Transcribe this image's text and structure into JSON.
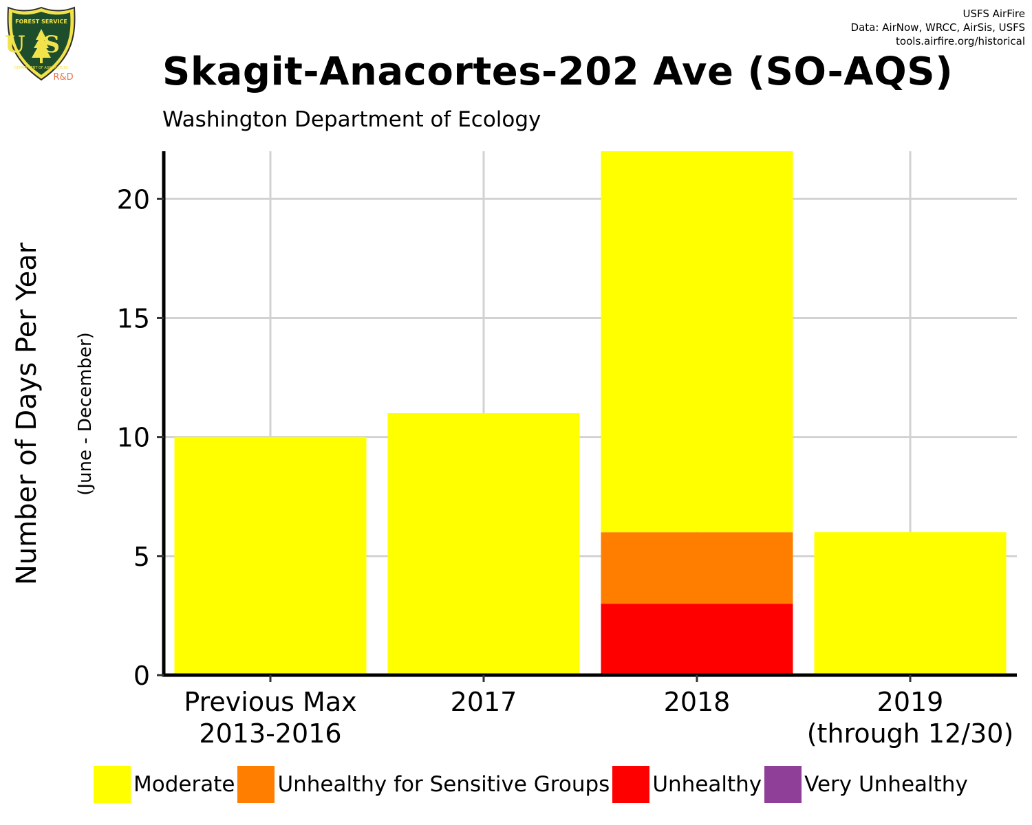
{
  "logo": {
    "top_text": "FOREST SERVICE",
    "bottom_text": "DEPARTMENT OF AGRICULTURE",
    "letters": "US",
    "rd_label": "R&D"
  },
  "credits": {
    "line1": "USFS AirFire",
    "line2": "Data: AirNow, WRCC, AirSis, USFS",
    "line3": "tools.airfire.org/historical"
  },
  "chart_data": {
    "type": "bar",
    "stacked": true,
    "title": "Skagit-Anacortes-202 Ave (SO-AQS)",
    "subtitle": "Washington Department of Ecology",
    "ylabel": "Number of Days Per Year",
    "ylabel_sub": "(June - December)",
    "xlabel": "",
    "ylim": [
      0,
      22
    ],
    "yticks": [
      0,
      5,
      10,
      15,
      20
    ],
    "grid": true,
    "legend_position": "bottom",
    "categories": [
      [
        "Previous Max",
        "2013-2016"
      ],
      [
        "2017"
      ],
      [
        "2018"
      ],
      [
        "2019",
        "(through 12/30)"
      ]
    ],
    "series": [
      {
        "name": "Unhealthy",
        "color": "#ff0000",
        "values": [
          0,
          0,
          3,
          0
        ]
      },
      {
        "name": "Unhealthy for Sensitive Groups",
        "color": "#ff7e00",
        "values": [
          0,
          0,
          3,
          0
        ]
      },
      {
        "name": "Moderate",
        "color": "#ffff00",
        "values": [
          10,
          11,
          16,
          6
        ]
      },
      {
        "name": "Very Unhealthy",
        "color": "#8f3f97",
        "values": [
          0,
          0,
          0,
          0
        ]
      }
    ],
    "legend": [
      {
        "name": "Moderate",
        "color": "#ffff00"
      },
      {
        "name": "Unhealthy for Sensitive Groups",
        "color": "#ff7e00"
      },
      {
        "name": "Unhealthy",
        "color": "#ff0000"
      },
      {
        "name": "Very Unhealthy",
        "color": "#8f3f97"
      }
    ]
  }
}
